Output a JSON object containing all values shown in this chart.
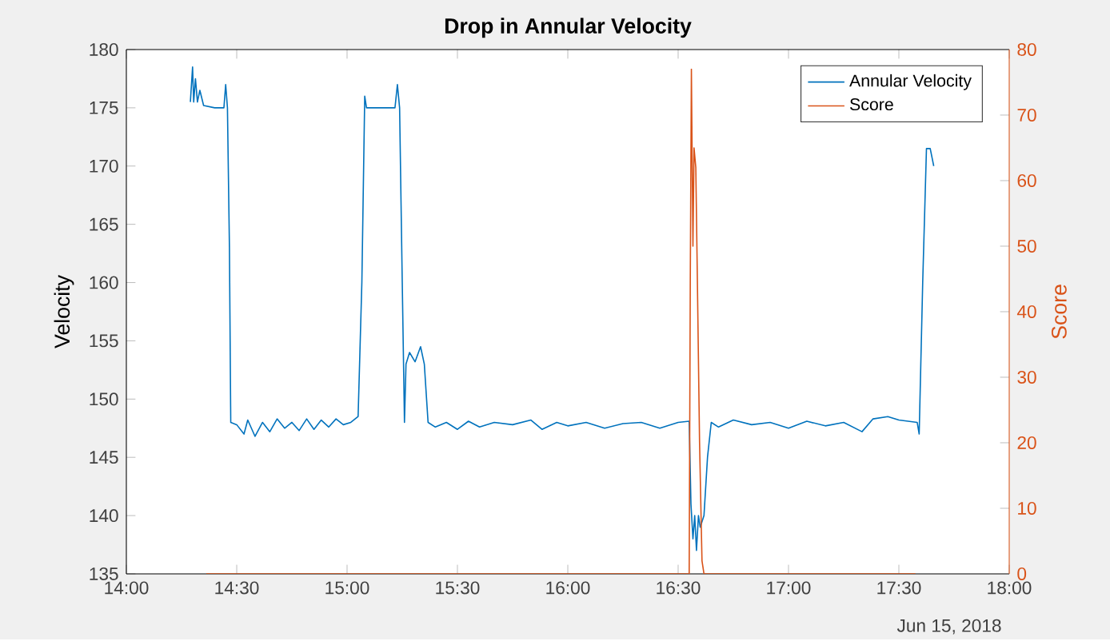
{
  "chart_data": {
    "type": "line",
    "title": "Drop in Annular Velocity",
    "ylabel": "Velocity",
    "y2label": "Score",
    "xlim": [
      14,
      18
    ],
    "xticks": [
      {
        "value": 14,
        "label": "14:00"
      },
      {
        "value": 14.5,
        "label": "14:30"
      },
      {
        "value": 15,
        "label": "15:00"
      },
      {
        "value": 15.5,
        "label": "15:30"
      },
      {
        "value": 16,
        "label": "16:00"
      },
      {
        "value": 16.5,
        "label": "16:30"
      },
      {
        "value": 17,
        "label": "17:00"
      },
      {
        "value": 17.5,
        "label": "17:30"
      },
      {
        "value": 18,
        "label": "18:00"
      }
    ],
    "ylim": [
      135,
      180
    ],
    "yticks": [
      135,
      140,
      145,
      150,
      155,
      160,
      165,
      170,
      175,
      180
    ],
    "y2lim": [
      0,
      80
    ],
    "y2ticks": [
      0,
      10,
      20,
      30,
      40,
      50,
      60,
      70,
      80
    ],
    "legend": "top right",
    "grid": false,
    "annotations": [
      "Jun 15, 2018"
    ],
    "series": [
      {
        "name": "Annular Velocity",
        "color": "#0072bd",
        "x": [
          14.29,
          14.3,
          14.305,
          14.313,
          14.322,
          14.333,
          14.35,
          14.4,
          14.442,
          14.45,
          14.458,
          14.467,
          14.473,
          14.5,
          14.533,
          14.55,
          14.583,
          14.617,
          14.65,
          14.683,
          14.717,
          14.75,
          14.783,
          14.817,
          14.85,
          14.883,
          14.917,
          14.95,
          14.983,
          15.017,
          15.05,
          15.067,
          15.08,
          15.088,
          15.117,
          15.217,
          15.228,
          15.238,
          15.25,
          15.26,
          15.267,
          15.283,
          15.308,
          15.333,
          15.35,
          15.367,
          15.4,
          15.45,
          15.5,
          15.55,
          15.6,
          15.667,
          15.75,
          15.833,
          15.883,
          15.95,
          16.0,
          16.083,
          16.167,
          16.25,
          16.333,
          16.417,
          16.5,
          16.55,
          16.558,
          16.567,
          16.575,
          16.583,
          16.592,
          16.6,
          16.617,
          16.633,
          16.65,
          16.683,
          16.75,
          16.833,
          16.917,
          17.0,
          17.083,
          17.167,
          17.25,
          17.333,
          17.383,
          17.45,
          17.5,
          17.583,
          17.592,
          17.608,
          17.625,
          17.642,
          17.658
        ],
        "values": [
          175.5,
          178.5,
          175.5,
          177.5,
          175.5,
          176.5,
          175.2,
          175.0,
          175.0,
          177.0,
          175.0,
          163.0,
          148.0,
          147.8,
          147.0,
          148.2,
          146.8,
          148.0,
          147.2,
          148.3,
          147.5,
          148.0,
          147.3,
          148.3,
          147.4,
          148.2,
          147.6,
          148.3,
          147.8,
          148.0,
          148.5,
          160.0,
          176.0,
          175.0,
          175.0,
          175.0,
          177.0,
          175.0,
          160.0,
          148.0,
          153.0,
          154.0,
          153.2,
          154.5,
          153.0,
          148.0,
          147.6,
          148.0,
          147.4,
          148.1,
          147.6,
          148.0,
          147.8,
          148.2,
          147.4,
          148.0,
          147.7,
          148.0,
          147.5,
          147.9,
          148.0,
          147.5,
          148.0,
          148.1,
          141.0,
          138.0,
          140.0,
          137.0,
          140.0,
          139.0,
          140.0,
          145.0,
          148.0,
          147.6,
          148.2,
          147.8,
          148.0,
          147.5,
          148.1,
          147.7,
          148.0,
          147.2,
          148.3,
          148.5,
          148.2,
          148.0,
          147.0,
          160.0,
          171.5,
          171.5,
          170.0
        ]
      },
      {
        "name": "Score",
        "color": "#d95319",
        "axis": "y2",
        "x": [
          14.362,
          16.55,
          16.555,
          16.56,
          16.567,
          16.572,
          16.58,
          16.587,
          16.597,
          16.608,
          16.617,
          17.575
        ],
        "values": [
          0,
          0,
          45,
          77,
          50,
          65,
          62,
          45,
          20,
          2,
          0,
          0
        ]
      }
    ]
  }
}
